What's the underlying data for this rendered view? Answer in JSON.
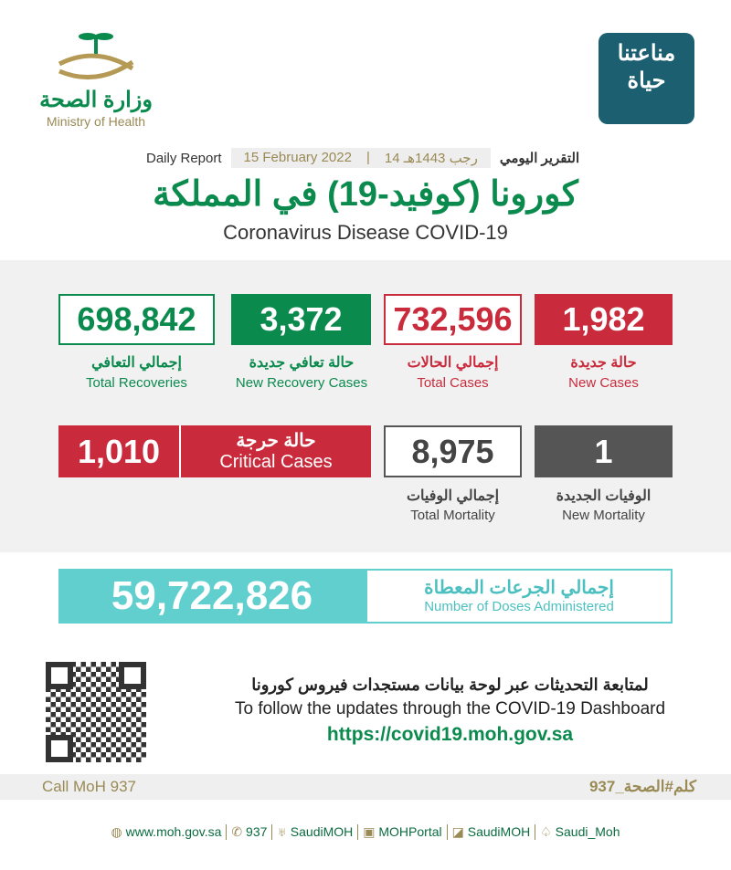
{
  "header": {
    "ministry_ar": "وزارة الصحة",
    "ministry_en": "Ministry of Health",
    "app_logo_ar_1": "مناعتنا",
    "app_logo_ar_2": "حياة",
    "daily_report_en": "Daily Report",
    "daily_report_ar": "التقرير اليومي",
    "date_gregorian": "15 February 2022",
    "date_hijri": "14 رجب 1443هـ",
    "title_ar": "كورونا (كوفيد-19) في المملكة",
    "title_en": "Coronavirus Disease COVID-19"
  },
  "stats": {
    "total_recoveries": {
      "value": "698,842",
      "label_ar": "إجمالي التعافي",
      "label_en": "Total Recoveries"
    },
    "new_recoveries": {
      "value": "3,372",
      "label_ar": "حالة تعافي جديدة",
      "label_en": "New Recovery Cases"
    },
    "total_cases": {
      "value": "732,596",
      "label_ar": "إجمالي الحالات",
      "label_en": "Total Cases"
    },
    "new_cases": {
      "value": "1,982",
      "label_ar": "حالة جديدة",
      "label_en": "New Cases"
    },
    "critical": {
      "value": "1,010",
      "label_ar": "حالة حرجة",
      "label_en": "Critical Cases"
    },
    "total_mortality": {
      "value": "8,975",
      "label_ar": "إجمالي الوفيات",
      "label_en": "Total Mortality"
    },
    "new_mortality": {
      "value": "1",
      "label_ar": "الوفيات الجديدة",
      "label_en": "New Mortality"
    },
    "doses": {
      "value": "59,722,826",
      "label_ar": "إجمالي الجرعات المعطاة",
      "label_en": "Number of Doses Administered"
    }
  },
  "dashboard": {
    "line_ar": "لمتابعة التحديثات عبر لوحة بيانات مستجدات فيروس كورونا",
    "line_en": "To follow the updates through the COVID-19 Dashboard",
    "url": "https://covid19.moh.gov.sa"
  },
  "call": {
    "en": "Call MoH 937",
    "ar": "كلم#الصحة_937"
  },
  "footer": [
    {
      "icon": "globe-icon",
      "text": "www.moh.gov.sa"
    },
    {
      "icon": "phone-icon",
      "text": "937"
    },
    {
      "icon": "twitter-icon",
      "text": "SaudiMOH"
    },
    {
      "icon": "youtube-icon",
      "text": "MOHPortal"
    },
    {
      "icon": "facebook-icon",
      "text": "SaudiMOH"
    },
    {
      "icon": "snapchat-icon",
      "text": "Saudi_Moh"
    }
  ],
  "colors": {
    "green": "#0b8a4e",
    "red": "#c92b3c",
    "gray": "#555555",
    "teal": "#62cfcf",
    "gold": "#9a8a55"
  }
}
